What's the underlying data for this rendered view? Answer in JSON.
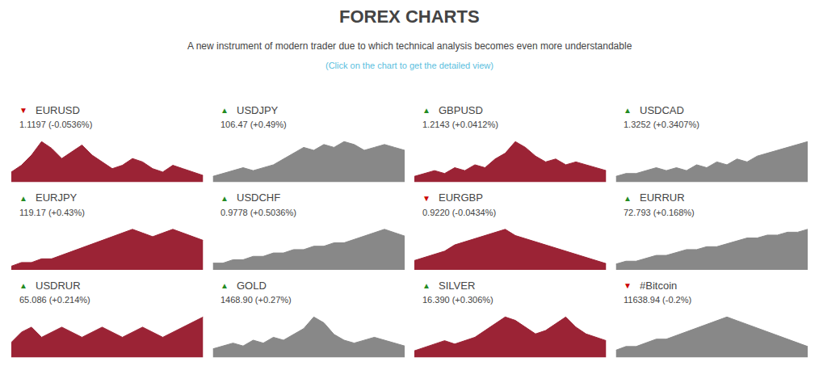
{
  "title": "FOREX CHARTS",
  "subtitle": "A new instrument of modern trader due to which technical analysis becomes even more understandable",
  "annotations": [
    {
      "text": "(Click on the chart to get the detailed view)",
      "color": "#5bc0de"
    }
  ],
  "chart_data": [
    {
      "type": "area",
      "title": "EURUSD",
      "subtitle": "1.1197 (-0.0536%)",
      "annotations": [
        {
          "text": "▼",
          "color": "#cc0000"
        }
      ],
      "color": "#9b2335",
      "values": [
        3,
        5,
        8,
        12,
        10,
        7,
        9,
        11,
        8,
        6,
        4,
        5,
        7,
        6,
        4,
        3,
        5,
        4,
        3,
        2
      ],
      "ylim": [
        0,
        13.2
      ],
      "tick_labels": false
    },
    {
      "type": "area",
      "title": "USDJPY",
      "subtitle": "106.47 (+0.49%)",
      "annotations": [
        {
          "text": "▲",
          "color": "#228B22"
        }
      ],
      "color": "#888888",
      "values": [
        2,
        3,
        4,
        5,
        4,
        5,
        6,
        8,
        10,
        12,
        11,
        13,
        12,
        14,
        13,
        11,
        12,
        13,
        12,
        11
      ],
      "ylim": [
        0,
        15.4
      ],
      "tick_labels": false
    },
    {
      "type": "area",
      "title": "GBPUSD",
      "subtitle": "1.2143 (+0.0412%)",
      "annotations": [
        {
          "text": "▲",
          "color": "#228B22"
        }
      ],
      "color": "#9b2335",
      "values": [
        2,
        3,
        4,
        3,
        5,
        4,
        6,
        5,
        8,
        10,
        14,
        12,
        9,
        7,
        8,
        6,
        7,
        6,
        5,
        4
      ],
      "ylim": [
        0,
        15.4
      ],
      "tick_labels": false
    },
    {
      "type": "area",
      "title": "USDCAD",
      "subtitle": "1.3252 (+0.3407%)",
      "annotations": [
        {
          "text": "▲",
          "color": "#228B22"
        }
      ],
      "color": "#888888",
      "values": [
        2,
        3,
        3,
        4,
        5,
        4,
        5,
        4,
        6,
        5,
        7,
        6,
        8,
        7,
        9,
        10,
        11,
        12,
        13,
        14
      ],
      "ylim": [
        0,
        15.4
      ],
      "tick_labels": false
    },
    {
      "type": "area",
      "title": "EURJPY",
      "subtitle": "119.17 (+0.43%)",
      "annotations": [
        {
          "text": "▲",
          "color": "#228B22"
        }
      ],
      "color": "#9b2335",
      "values": [
        1,
        2,
        2,
        3,
        3,
        4,
        5,
        6,
        7,
        8,
        9,
        10,
        11,
        10,
        9,
        10,
        11,
        10,
        9,
        8
      ],
      "ylim": [
        0,
        12.1
      ],
      "tick_labels": false
    },
    {
      "type": "area",
      "title": "USDCHF",
      "subtitle": "0.9778 (+0.5036%)",
      "annotations": [
        {
          "text": "▲",
          "color": "#228B22"
        }
      ],
      "color": "#888888",
      "values": [
        2,
        2,
        3,
        3,
        4,
        4,
        5,
        5,
        6,
        6,
        7,
        7,
        8,
        8,
        9,
        10,
        11,
        12,
        11,
        10
      ],
      "ylim": [
        0,
        13.2
      ],
      "tick_labels": false
    },
    {
      "type": "area",
      "title": "EURGBP",
      "subtitle": "0.9220 (-0.0434%)",
      "annotations": [
        {
          "text": "▼",
          "color": "#cc0000"
        }
      ],
      "color": "#9b2335",
      "values": [
        3,
        4,
        5,
        6,
        8,
        9,
        10,
        11,
        12,
        13,
        11,
        10,
        9,
        8,
        7,
        6,
        5,
        4,
        3,
        2
      ],
      "ylim": [
        0,
        14.3
      ],
      "tick_labels": false
    },
    {
      "type": "area",
      "title": "EURRUR",
      "subtitle": "72.793 (+0.168%)",
      "annotations": [
        {
          "text": "▲",
          "color": "#228B22"
        }
      ],
      "color": "#888888",
      "values": [
        2,
        3,
        3,
        4,
        5,
        5,
        6,
        7,
        7,
        8,
        8,
        9,
        10,
        11,
        11,
        12,
        12,
        13,
        13,
        14
      ],
      "ylim": [
        0,
        15.4
      ],
      "tick_labels": false
    },
    {
      "type": "area",
      "title": "USDRUR",
      "subtitle": "65.086 (+0.214%)",
      "annotations": [
        {
          "text": "▲",
          "color": "#228B22"
        }
      ],
      "color": "#9b2335",
      "values": [
        3,
        5,
        6,
        4,
        5,
        6,
        5,
        4,
        5,
        6,
        5,
        4,
        5,
        6,
        5,
        4,
        5,
        6,
        7,
        8
      ],
      "ylim": [
        0,
        8.8
      ],
      "tick_labels": false
    },
    {
      "type": "area",
      "title": "GOLD",
      "subtitle": "1468.90 (+0.27%)",
      "annotations": [
        {
          "text": "▲",
          "color": "#228B22"
        }
      ],
      "color": "#888888",
      "values": [
        3,
        4,
        5,
        4,
        6,
        5,
        7,
        6,
        8,
        10,
        14,
        12,
        8,
        6,
        5,
        6,
        7,
        6,
        5,
        4
      ],
      "ylim": [
        0,
        15.4
      ],
      "tick_labels": false
    },
    {
      "type": "area",
      "title": "SILVER",
      "subtitle": "16.390 (+0.306%)",
      "annotations": [
        {
          "text": "▲",
          "color": "#228B22"
        }
      ],
      "color": "#9b2335",
      "values": [
        2,
        3,
        4,
        5,
        4,
        5,
        6,
        8,
        10,
        12,
        11,
        9,
        7,
        8,
        10,
        12,
        9,
        7,
        6,
        5
      ],
      "ylim": [
        0,
        13.2
      ],
      "tick_labels": false
    },
    {
      "type": "area",
      "title": "#Bitcoin",
      "subtitle": "11638.94 (-0.2%)",
      "annotations": [
        {
          "text": "▼",
          "color": "#cc0000"
        }
      ],
      "color": "#888888",
      "values": [
        2,
        3,
        3,
        4,
        5,
        5,
        6,
        7,
        8,
        9,
        10,
        11,
        10,
        9,
        8,
        7,
        6,
        5,
        4,
        3
      ],
      "ylim": [
        0,
        12.1
      ],
      "tick_labels": false
    }
  ]
}
